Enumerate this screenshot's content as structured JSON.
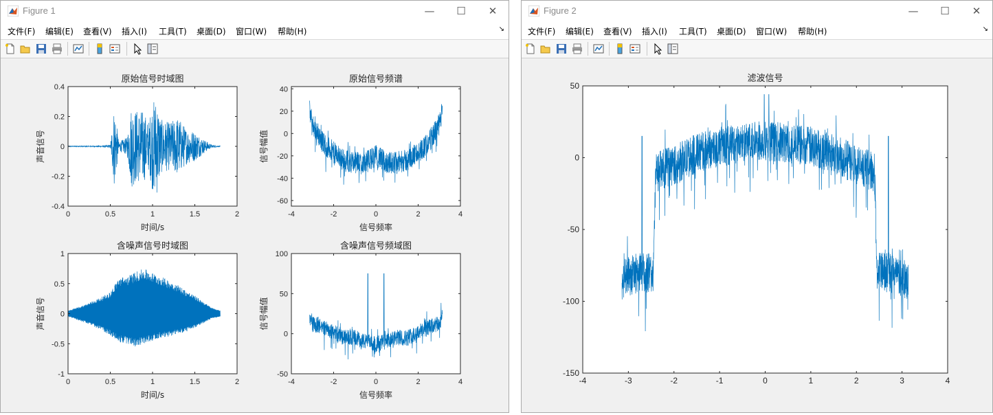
{
  "colors": {
    "line": "#0072BD",
    "figure_bg": "#f0f0f0",
    "axes_bg": "#ffffff"
  },
  "window1": {
    "title": "Figure 1",
    "controls": {
      "minimize": "—",
      "maximize": "☐",
      "close": "✕"
    },
    "menu": [
      "文件(F)",
      "编辑(E)",
      "查看(V)",
      "插入(I)",
      "工具(T)",
      "桌面(D)",
      "窗口(W)",
      "帮助(H)"
    ],
    "toolbar_icons": [
      "new-figure-icon",
      "open-file-icon",
      "save-icon",
      "print-icon",
      "link-plot-icon",
      "colorbar-icon",
      "legend-icon",
      "edit-plot-icon",
      "property-inspector-icon"
    ]
  },
  "window2": {
    "title": "Figure 2",
    "controls": {
      "minimize": "—",
      "maximize": "☐",
      "close": "✕"
    },
    "menu": [
      "文件(F)",
      "编辑(E)",
      "查看(V)",
      "插入(I)",
      "工具(T)",
      "桌面(D)",
      "窗口(W)",
      "帮助(H)"
    ],
    "toolbar_icons": [
      "new-figure-icon",
      "open-file-icon",
      "save-icon",
      "print-icon",
      "link-plot-icon",
      "colorbar-icon",
      "legend-icon",
      "edit-plot-icon",
      "property-inspector-icon"
    ]
  },
  "chart_data": [
    {
      "type": "line",
      "title": "原始信号时域图",
      "xlabel": "时间/s",
      "ylabel": "声音信号",
      "xlim": [
        0,
        2
      ],
      "ylim": [
        -0.4,
        0.4
      ],
      "xticks": [
        "0",
        "0.5",
        "1",
        "1.5",
        "2"
      ],
      "yticks": [
        "-0.4",
        "-0.2",
        "0",
        "0.2",
        "0.4"
      ],
      "x": [
        0,
        0.2,
        0.4,
        0.5,
        0.55,
        0.6,
        0.7,
        0.75,
        0.8,
        0.9,
        0.95,
        1.0,
        1.05,
        1.1,
        1.2,
        1.3,
        1.4,
        1.5,
        1.6,
        1.7,
        1.8
      ],
      "envelope": [
        0.003,
        0.003,
        0.005,
        0.01,
        0.29,
        0.03,
        0.06,
        0.28,
        0.25,
        0.24,
        0.15,
        0.3,
        0.33,
        0.18,
        0.16,
        0.2,
        0.12,
        0.1,
        0.05,
        0.01,
        0.003
      ]
    },
    {
      "type": "line",
      "title": "原始信号频谱",
      "xlabel": "信号频率",
      "ylabel": "信号幅值",
      "xlim": [
        -4,
        4
      ],
      "ylim": [
        -65,
        42
      ],
      "xticks": [
        "-4",
        "-2",
        "0",
        "2",
        "4"
      ],
      "yticks": [
        "-60",
        "-40",
        "-20",
        "0",
        "20",
        "40"
      ],
      "x": [
        -3.14,
        -3.0,
        -2.5,
        -2.0,
        -1.5,
        -1.0,
        -0.5,
        0,
        0.5,
        1.0,
        1.5,
        2.0,
        2.5,
        3.0,
        3.14
      ],
      "mean": [
        20,
        8,
        -8,
        -17,
        -24,
        -26,
        -26,
        -20,
        -26,
        -26,
        -24,
        -17,
        -8,
        8,
        20
      ],
      "spread": 10
    },
    {
      "type": "line",
      "title": "含噪声信号时域图",
      "xlabel": "时间/s",
      "ylabel": "声音信号",
      "xlim": [
        0,
        2
      ],
      "ylim": [
        -1,
        1
      ],
      "xticks": [
        "0",
        "0.5",
        "1",
        "1.5",
        "2"
      ],
      "yticks": [
        "-1",
        "-0.5",
        "0",
        "0.5",
        "1"
      ],
      "x": [
        0,
        0.2,
        0.4,
        0.5,
        0.6,
        0.7,
        0.8,
        0.9,
        1.0,
        1.1,
        1.2,
        1.3,
        1.4,
        1.5,
        1.6,
        1.7,
        1.8
      ],
      "envelope_top": [
        0.05,
        0.15,
        0.28,
        0.36,
        0.6,
        0.62,
        0.7,
        0.75,
        0.68,
        0.62,
        0.55,
        0.48,
        0.38,
        0.3,
        0.2,
        0.1,
        0.05
      ],
      "envelope_bottom": [
        -0.05,
        -0.15,
        -0.28,
        -0.36,
        -0.48,
        -0.5,
        -0.55,
        -0.5,
        -0.45,
        -0.4,
        -0.38,
        -0.34,
        -0.3,
        -0.24,
        -0.16,
        -0.08,
        -0.05
      ]
    },
    {
      "type": "line",
      "title": "含噪声信号频域图",
      "xlabel": "信号频率",
      "ylabel": "信号幅值",
      "xlim": [
        -4,
        4
      ],
      "ylim": [
        -50,
        100
      ],
      "xticks": [
        "-4",
        "-2",
        "0",
        "2",
        "4"
      ],
      "yticks": [
        "-50",
        "0",
        "50",
        "100"
      ],
      "x": [
        -3.14,
        -3.0,
        -2.5,
        -2.0,
        -1.5,
        -1.0,
        -0.5,
        0,
        0.5,
        1.0,
        1.5,
        2.0,
        2.5,
        3.0,
        3.14
      ],
      "mean": [
        22,
        12,
        8,
        2,
        -5,
        -5,
        -10,
        -12,
        -10,
        -5,
        -5,
        2,
        8,
        12,
        22
      ],
      "spread": 10,
      "spikes": [
        {
          "x": -0.38,
          "y": 75
        },
        {
          "x": 0.38,
          "y": 75
        }
      ]
    },
    {
      "type": "line",
      "title": "滤波信号",
      "xlabel": "",
      "ylabel": "",
      "xlim": [
        -4,
        4
      ],
      "ylim": [
        -150,
        50
      ],
      "xticks": [
        "-4",
        "-3",
        "-2",
        "-1",
        "0",
        "1",
        "2",
        "3",
        "4"
      ],
      "yticks": [
        "-150",
        "-100",
        "-50",
        "0",
        "50"
      ],
      "x": [
        -3.14,
        -2.8,
        -2.45,
        -2.4,
        -2.0,
        -1.5,
        -1.0,
        -0.5,
        0,
        0.5,
        1.0,
        1.5,
        2.0,
        2.4,
        2.45,
        2.8,
        3.14
      ],
      "mean": [
        -85,
        -80,
        -80,
        -10,
        -5,
        3,
        8,
        10,
        12,
        10,
        8,
        3,
        -5,
        -10,
        -80,
        -80,
        -85
      ],
      "spread": 14,
      "spikes": [
        {
          "x": -2.7,
          "y": 15
        },
        {
          "x": 2.7,
          "y": 15
        },
        {
          "x": -0.02,
          "y": 44
        },
        {
          "x": 0.08,
          "y": 44
        }
      ]
    }
  ]
}
